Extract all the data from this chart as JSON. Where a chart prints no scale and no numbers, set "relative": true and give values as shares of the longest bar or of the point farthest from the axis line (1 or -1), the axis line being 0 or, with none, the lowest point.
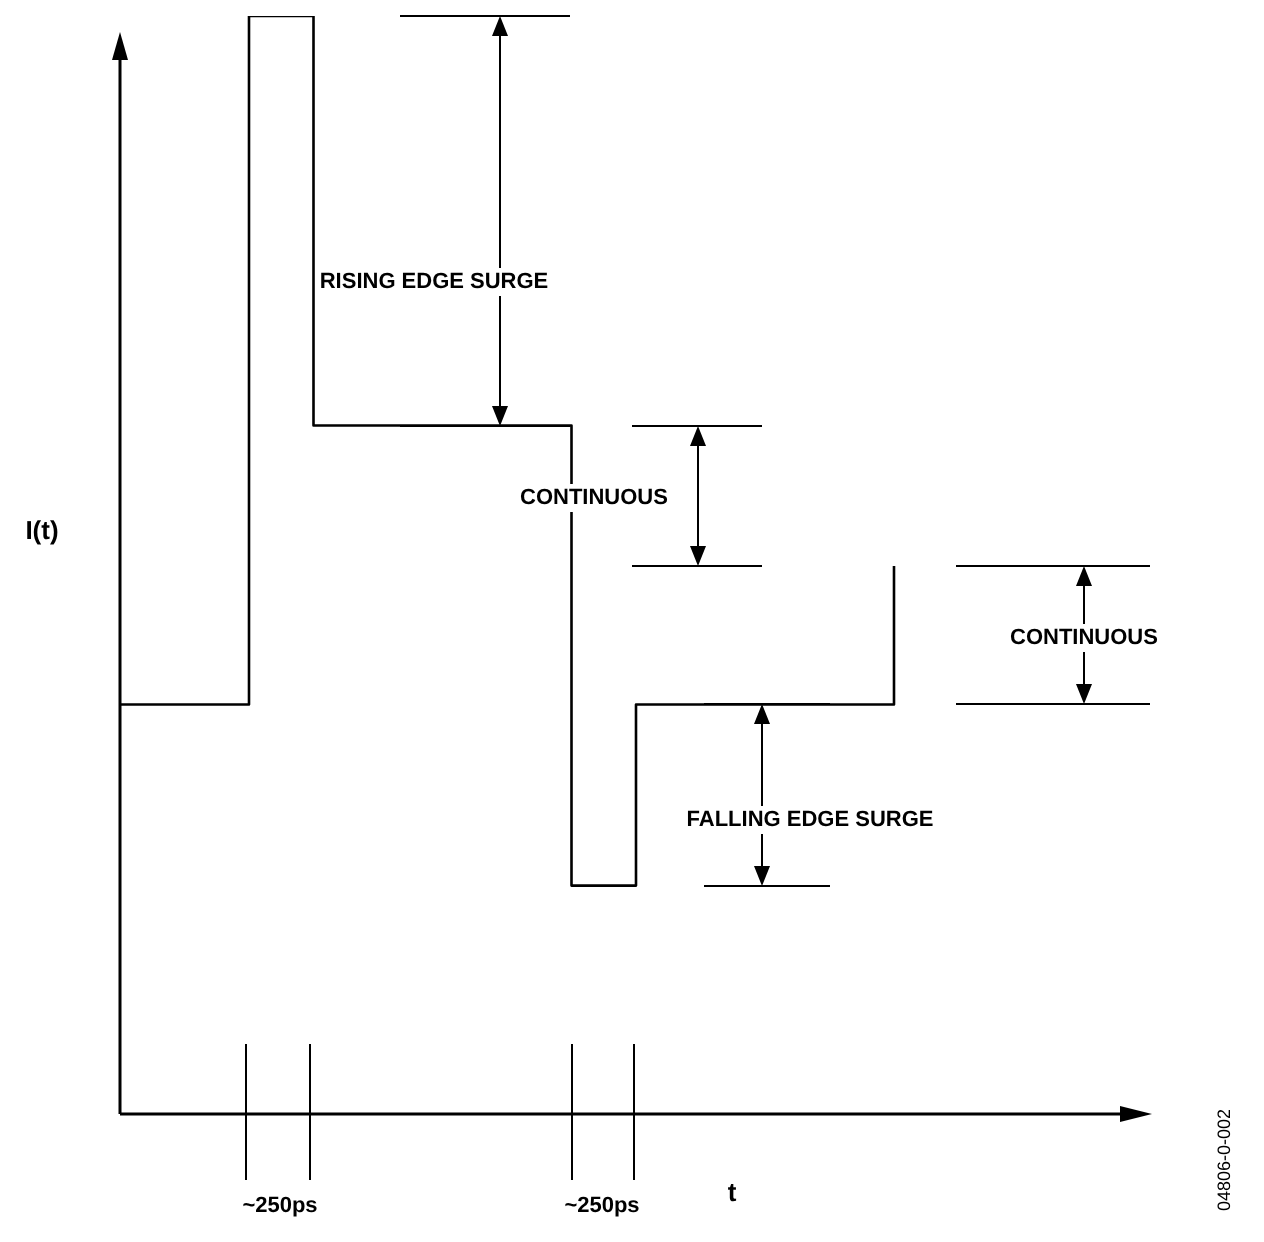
{
  "chart_data": {
    "type": "step",
    "relative": true,
    "marker": "none",
    "color": "#000000",
    "xlabel": "t",
    "ylabel": "I(t)",
    "categories": [
      null,
      null,
      null,
      null,
      null,
      null,
      null,
      null,
      null,
      null,
      null,
      null,
      null,
      null,
      null,
      null,
      null
    ],
    "values": [
      0.373,
      0.373,
      1,
      0.627,
      0.627,
      0.627,
      0.627,
      0.208,
      0.373,
      0.373,
      0.373,
      0.373,
      0.499,
      null,
      null,
      null,
      null
    ],
    "annotations": [
      "RISING EDGE SURGE",
      "CONTINUOUS",
      "CONTINUOUS",
      "FALLING EDGE SURGE",
      "~250ps",
      "~250ps",
      "04806-0-002"
    ]
  }
}
